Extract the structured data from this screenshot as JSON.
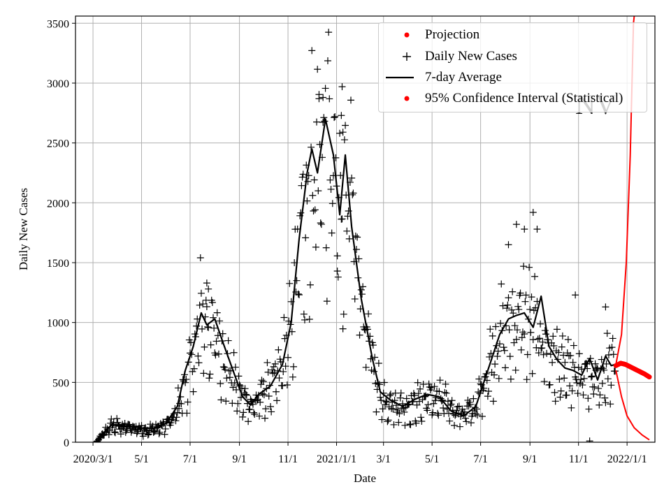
{
  "chart_data": {
    "type": "line",
    "xlabel": "Date",
    "ylabel": "Daily New Cases",
    "ylim": [
      0,
      3560
    ],
    "y_ticks": [
      0,
      500,
      1000,
      1500,
      2000,
      2500,
      3000,
      3500
    ],
    "x_ticks": [
      "2020-03-01",
      "2020-05-01",
      "2020-07-01",
      "2020-09-01",
      "2020-11-01",
      "2021-01-01",
      "2021-03-01",
      "2021-05-01",
      "2021-07-01",
      "2021-09-01",
      "2021-11-01",
      "2022-01-01"
    ],
    "x_tick_labels": [
      "2020/3/1",
      "5/1",
      "7/1",
      "9/1",
      "11/1",
      "2021/1/1",
      "3/1",
      "5/1",
      "7/1",
      "9/1",
      "11/1",
      "2022/1/1"
    ],
    "xlim": [
      "2020-02-08",
      "2022-02-05"
    ],
    "grid": true,
    "legend_position": "top-right",
    "legend": [
      {
        "label": "Projection",
        "marker": "dot",
        "color": "#ff0000"
      },
      {
        "label": "Daily New Cases",
        "marker": "plus",
        "color": "#000000"
      },
      {
        "label": "7-day Average",
        "marker": "line",
        "color": "#000000"
      },
      {
        "label": "95% Confidence Interval (Statistical)",
        "marker": "dot",
        "color": "#ff0000"
      }
    ],
    "overlay_label": "NV",
    "series": [
      {
        "name": "7-day Average",
        "color": "#000000",
        "points": [
          [
            "2020-03-08",
            10
          ],
          [
            "2020-03-16",
            90
          ],
          [
            "2020-03-25",
            150
          ],
          [
            "2020-04-05",
            140
          ],
          [
            "2020-04-20",
            130
          ],
          [
            "2020-05-05",
            115
          ],
          [
            "2020-05-20",
            120
          ],
          [
            "2020-06-01",
            160
          ],
          [
            "2020-06-15",
            300
          ],
          [
            "2020-06-25",
            600
          ],
          [
            "2020-07-05",
            800
          ],
          [
            "2020-07-15",
            1080
          ],
          [
            "2020-07-22",
            980
          ],
          [
            "2020-08-01",
            1030
          ],
          [
            "2020-08-12",
            820
          ],
          [
            "2020-08-25",
            580
          ],
          [
            "2020-09-05",
            380
          ],
          [
            "2020-09-15",
            310
          ],
          [
            "2020-09-25",
            400
          ],
          [
            "2020-10-10",
            470
          ],
          [
            "2020-10-25",
            650
          ],
          [
            "2020-11-05",
            1000
          ],
          [
            "2020-11-15",
            1700
          ],
          [
            "2020-11-25",
            2250
          ],
          [
            "2020-12-01",
            2450
          ],
          [
            "2020-12-08",
            2250
          ],
          [
            "2020-12-18",
            2700
          ],
          [
            "2020-12-28",
            2400
          ],
          [
            "2021-01-05",
            1900
          ],
          [
            "2021-01-12",
            2400
          ],
          [
            "2021-01-20",
            1800
          ],
          [
            "2021-02-01",
            1200
          ],
          [
            "2021-02-15",
            700
          ],
          [
            "2021-02-25",
            420
          ],
          [
            "2021-03-10",
            350
          ],
          [
            "2021-03-25",
            300
          ],
          [
            "2021-04-10",
            360
          ],
          [
            "2021-04-25",
            400
          ],
          [
            "2021-05-10",
            380
          ],
          [
            "2021-05-25",
            260
          ],
          [
            "2021-06-10",
            220
          ],
          [
            "2021-06-25",
            300
          ],
          [
            "2021-07-05",
            500
          ],
          [
            "2021-07-15",
            700
          ],
          [
            "2021-07-25",
            900
          ],
          [
            "2021-08-05",
            1030
          ],
          [
            "2021-08-15",
            1060
          ],
          [
            "2021-08-25",
            1080
          ],
          [
            "2021-09-05",
            960
          ],
          [
            "2021-09-15",
            1220
          ],
          [
            "2021-09-25",
            800
          ],
          [
            "2021-10-05",
            690
          ],
          [
            "2021-10-15",
            620
          ],
          [
            "2021-10-25",
            600
          ],
          [
            "2021-11-05",
            560
          ],
          [
            "2021-11-15",
            700
          ],
          [
            "2021-11-25",
            520
          ],
          [
            "2021-12-05",
            720
          ],
          [
            "2021-12-12",
            640
          ],
          [
            "2021-12-18",
            650
          ]
        ]
      },
      {
        "name": "Projection",
        "color": "#ff0000",
        "points": [
          [
            "2021-12-18",
            640
          ],
          [
            "2021-12-24",
            660
          ],
          [
            "2021-12-30",
            650
          ],
          [
            "2022-01-05",
            630
          ],
          [
            "2022-01-11",
            610
          ],
          [
            "2022-01-17",
            590
          ],
          [
            "2022-01-23",
            570
          ],
          [
            "2022-01-29",
            545
          ]
        ]
      },
      {
        "name": "95% Confidence Interval (Statistical)",
        "color": "#ff0000",
        "upper": [
          [
            "2021-12-18",
            650
          ],
          [
            "2021-12-25",
            900
          ],
          [
            "2021-12-31",
            1500
          ],
          [
            "2022-01-05",
            2400
          ],
          [
            "2022-01-09",
            3500
          ],
          [
            "2022-01-10",
            3560
          ]
        ],
        "lower": [
          [
            "2021-12-18",
            600
          ],
          [
            "2021-12-25",
            380
          ],
          [
            "2022-01-01",
            220
          ],
          [
            "2022-01-10",
            120
          ],
          [
            "2022-01-20",
            60
          ],
          [
            "2022-01-29",
            20
          ]
        ]
      },
      {
        "name": "Daily New Cases",
        "color": "#000000",
        "anchors": [
          [
            "2020-03-05",
            0
          ],
          [
            "2020-03-15",
            80
          ],
          [
            "2020-03-25",
            150
          ],
          [
            "2020-04-10",
            130
          ],
          [
            "2020-04-25",
            120
          ],
          [
            "2020-05-10",
            110
          ],
          [
            "2020-05-25",
            130
          ],
          [
            "2020-06-10",
            200
          ],
          [
            "2020-06-22",
            450
          ],
          [
            "2020-07-05",
            750
          ],
          [
            "2020-07-15",
            1150
          ],
          [
            "2020-07-25",
            1000
          ],
          [
            "2020-08-05",
            900
          ],
          [
            "2020-08-20",
            620
          ],
          [
            "2020-09-05",
            380
          ],
          [
            "2020-09-20",
            330
          ],
          [
            "2020-10-05",
            470
          ],
          [
            "2020-10-20",
            560
          ],
          [
            "2020-11-05",
            1000
          ],
          [
            "2020-11-20",
            2000
          ],
          [
            "2020-12-05",
            2500
          ],
          [
            "2020-12-20",
            2650
          ],
          [
            "2021-01-05",
            2000
          ],
          [
            "2021-01-15",
            2300
          ],
          [
            "2021-01-25",
            1600
          ],
          [
            "2021-02-10",
            900
          ],
          [
            "2021-02-25",
            420
          ],
          [
            "2021-03-15",
            320
          ],
          [
            "2021-04-05",
            330
          ],
          [
            "2021-04-25",
            400
          ],
          [
            "2021-05-15",
            360
          ],
          [
            "2021-06-05",
            250
          ],
          [
            "2021-06-25",
            300
          ],
          [
            "2021-07-10",
            650
          ],
          [
            "2021-07-25",
            950
          ],
          [
            "2021-08-10",
            1050
          ],
          [
            "2021-08-25",
            1100
          ],
          [
            "2021-09-10",
            1000
          ],
          [
            "2021-09-25",
            780
          ],
          [
            "2021-10-15",
            620
          ],
          [
            "2021-11-05",
            560
          ],
          [
            "2021-11-25",
            550
          ],
          [
            "2021-12-10",
            680
          ],
          [
            "2021-12-17",
            640
          ]
        ],
        "extremes": [
          [
            "2020-07-22",
            1330
          ],
          [
            "2020-07-24",
            1280
          ],
          [
            "2020-12-10",
            2870
          ],
          [
            "2020-12-15",
            2880
          ],
          [
            "2021-01-08",
            2970
          ],
          [
            "2021-01-07",
            2730
          ],
          [
            "2021-01-09",
            2590
          ],
          [
            "2021-01-02",
            1430
          ],
          [
            "2021-08-15",
            1820
          ],
          [
            "2021-09-05",
            1920
          ],
          [
            "2021-08-25",
            1780
          ],
          [
            "2021-09-10",
            1780
          ],
          [
            "2021-08-05",
            1650
          ],
          [
            "2021-10-28",
            1230
          ],
          [
            "2021-12-05",
            1130
          ],
          [
            "2021-11-15",
            10
          ]
        ]
      }
    ]
  }
}
